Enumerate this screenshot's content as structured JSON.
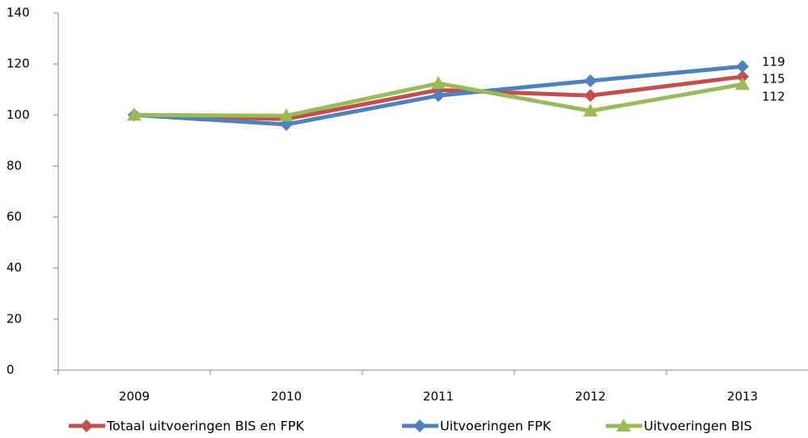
{
  "chart_data": {
    "type": "line",
    "categories": [
      "2009",
      "2010",
      "2011",
      "2012",
      "2013"
    ],
    "series": [
      {
        "name": "Totaal uitvoeringen BIS en FPK",
        "color": "#c0504d",
        "marker": "diamond",
        "values": [
          100,
          98.4,
          109.8,
          107.6,
          115
        ]
      },
      {
        "name": "Uitvoeringen FPK",
        "color": "#4f81bd",
        "marker": "diamond",
        "values": [
          100,
          96.3,
          107.6,
          113.4,
          119
        ]
      },
      {
        "name": "Uitvoeringen BIS",
        "color": "#9bbb59",
        "marker": "triangle",
        "values": [
          100,
          99.7,
          112.4,
          101.6,
          112
        ]
      }
    ],
    "ylim": [
      0,
      140
    ],
    "yticks": [
      0,
      20,
      40,
      60,
      80,
      100,
      120,
      140
    ],
    "legend": "bottom"
  }
}
